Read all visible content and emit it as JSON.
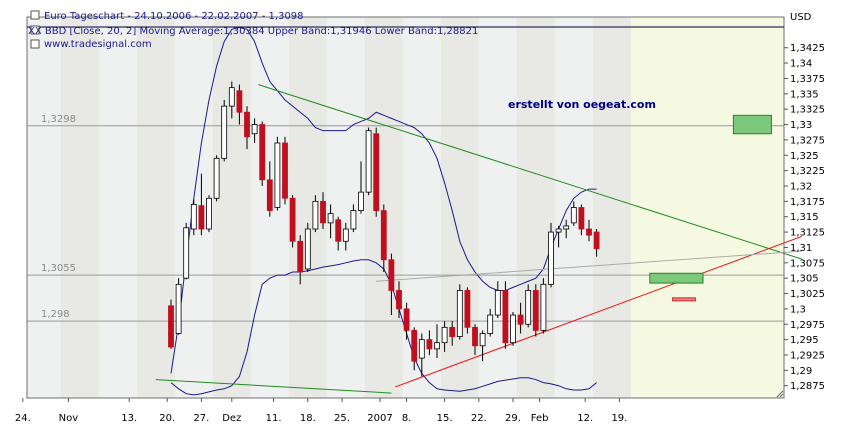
{
  "header": {
    "title": "Euro Tageschart - 24.10.2006 - 22.02.2007 - 1,3098",
    "indicator": "XX BBD [Close, 20, 2] Moving Average:1,30384 Upper Band:1,31946 Lower Band:1,28821",
    "source": "www.tradesignal.com",
    "currency": "USD"
  },
  "annotation": "erstellt von oegeat.com",
  "colors": {
    "plot_bg": "#f5f9e2",
    "band_light": "#e9e9fb",
    "band_dark": "#dcdce8",
    "candle_up": "#ffffff",
    "candle_down": "#c01020",
    "bollinger": "#1a1a8c",
    "trend_green": "#1e8c1e",
    "trend_red": "#ee1111",
    "box_green": "#7cc87c",
    "box_red": "#f08080"
  },
  "chart_data": {
    "type": "candlestick",
    "ylim": [
      1.2855,
      1.3475
    ],
    "y_ticks": [
      "1,2875",
      "1,29",
      "1,2925",
      "1,295",
      "1,2975",
      "1,3",
      "1,3025",
      "1,305",
      "1,3075",
      "1,31",
      "1,3125",
      "1,315",
      "1,3175",
      "1,32",
      "1,3225",
      "1,325",
      "1,3275",
      "1,33",
      "1,3325",
      "1,335",
      "1,3375",
      "1,34",
      "1,3425"
    ],
    "x_ticks": [
      "24.",
      "Nov",
      "13.",
      "20.",
      "27.",
      "Dez",
      "11.",
      "18.",
      "25.",
      "2007",
      "8.",
      "15.",
      "22.",
      "29.",
      "Feb",
      "12.",
      "19."
    ],
    "reference_lines": [
      {
        "label": "1,3298",
        "value": 1.3298
      },
      {
        "label": "1,3055",
        "value": 1.3055
      },
      {
        "label": "1,298",
        "value": 1.298
      }
    ],
    "candles": [
      {
        "o": 1.3005,
        "h": 1.3015,
        "l": 1.2935,
        "c": 1.2938
      },
      {
        "o": 1.296,
        "h": 1.305,
        "l": 1.2958,
        "c": 1.304
      },
      {
        "o": 1.305,
        "h": 1.314,
        "l": 1.3048,
        "c": 1.3132
      },
      {
        "o": 1.313,
        "h": 1.3178,
        "l": 1.312,
        "c": 1.317
      },
      {
        "o": 1.3168,
        "h": 1.322,
        "l": 1.312,
        "c": 1.313
      },
      {
        "o": 1.313,
        "h": 1.3185,
        "l": 1.3125,
        "c": 1.318
      },
      {
        "o": 1.318,
        "h": 1.325,
        "l": 1.3175,
        "c": 1.3245
      },
      {
        "o": 1.3245,
        "h": 1.334,
        "l": 1.324,
        "c": 1.333
      },
      {
        "o": 1.333,
        "h": 1.337,
        "l": 1.331,
        "c": 1.336
      },
      {
        "o": 1.3355,
        "h": 1.3365,
        "l": 1.33,
        "c": 1.332
      },
      {
        "o": 1.332,
        "h": 1.333,
        "l": 1.326,
        "c": 1.328
      },
      {
        "o": 1.3285,
        "h": 1.331,
        "l": 1.327,
        "c": 1.33
      },
      {
        "o": 1.33,
        "h": 1.3305,
        "l": 1.32,
        "c": 1.321
      },
      {
        "o": 1.321,
        "h": 1.324,
        "l": 1.315,
        "c": 1.316
      },
      {
        "o": 1.3165,
        "h": 1.328,
        "l": 1.316,
        "c": 1.327
      },
      {
        "o": 1.327,
        "h": 1.328,
        "l": 1.317,
        "c": 1.318
      },
      {
        "o": 1.318,
        "h": 1.3185,
        "l": 1.31,
        "c": 1.311
      },
      {
        "o": 1.311,
        "h": 1.312,
        "l": 1.304,
        "c": 1.306
      },
      {
        "o": 1.3065,
        "h": 1.314,
        "l": 1.306,
        "c": 1.313
      },
      {
        "o": 1.313,
        "h": 1.3185,
        "l": 1.3125,
        "c": 1.3175
      },
      {
        "o": 1.3175,
        "h": 1.319,
        "l": 1.313,
        "c": 1.314
      },
      {
        "o": 1.314,
        "h": 1.317,
        "l": 1.3115,
        "c": 1.3155
      },
      {
        "o": 1.3145,
        "h": 1.315,
        "l": 1.3095,
        "c": 1.311
      },
      {
        "o": 1.311,
        "h": 1.314,
        "l": 1.3095,
        "c": 1.313
      },
      {
        "o": 1.313,
        "h": 1.317,
        "l": 1.3125,
        "c": 1.316
      },
      {
        "o": 1.316,
        "h": 1.324,
        "l": 1.3155,
        "c": 1.319
      },
      {
        "o": 1.319,
        "h": 1.3295,
        "l": 1.3185,
        "c": 1.329
      },
      {
        "o": 1.3285,
        "h": 1.3295,
        "l": 1.315,
        "c": 1.316
      },
      {
        "o": 1.316,
        "h": 1.317,
        "l": 1.306,
        "c": 1.308
      },
      {
        "o": 1.308,
        "h": 1.309,
        "l": 1.299,
        "c": 1.303
      },
      {
        "o": 1.303,
        "h": 1.3045,
        "l": 1.2985,
        "c": 1.3
      },
      {
        "o": 1.3,
        "h": 1.301,
        "l": 1.295,
        "c": 1.2965
      },
      {
        "o": 1.2965,
        "h": 1.297,
        "l": 1.29,
        "c": 1.2915
      },
      {
        "o": 1.292,
        "h": 1.296,
        "l": 1.289,
        "c": 1.295
      },
      {
        "o": 1.295,
        "h": 1.2965,
        "l": 1.2925,
        "c": 1.2935
      },
      {
        "o": 1.2935,
        "h": 1.2975,
        "l": 1.292,
        "c": 1.2945
      },
      {
        "o": 1.2945,
        "h": 1.298,
        "l": 1.293,
        "c": 1.297
      },
      {
        "o": 1.297,
        "h": 1.298,
        "l": 1.294,
        "c": 1.2955
      },
      {
        "o": 1.2955,
        "h": 1.304,
        "l": 1.295,
        "c": 1.303
      },
      {
        "o": 1.303,
        "h": 1.3035,
        "l": 1.296,
        "c": 1.297
      },
      {
        "o": 1.297,
        "h": 1.2975,
        "l": 1.2925,
        "c": 1.294
      },
      {
        "o": 1.294,
        "h": 1.2965,
        "l": 1.2915,
        "c": 1.296
      },
      {
        "o": 1.296,
        "h": 1.3,
        "l": 1.2955,
        "c": 1.299
      },
      {
        "o": 1.299,
        "h": 1.3045,
        "l": 1.2985,
        "c": 1.303
      },
      {
        "o": 1.303,
        "h": 1.3045,
        "l": 1.2935,
        "c": 1.2945
      },
      {
        "o": 1.2945,
        "h": 1.2995,
        "l": 1.294,
        "c": 1.299
      },
      {
        "o": 1.299,
        "h": 1.301,
        "l": 1.296,
        "c": 1.2975
      },
      {
        "o": 1.2975,
        "h": 1.304,
        "l": 1.297,
        "c": 1.303
      },
      {
        "o": 1.303,
        "h": 1.304,
        "l": 1.2955,
        "c": 1.2965
      },
      {
        "o": 1.2965,
        "h": 1.305,
        "l": 1.296,
        "c": 1.304
      },
      {
        "o": 1.304,
        "h": 1.314,
        "l": 1.3035,
        "c": 1.3125
      },
      {
        "o": 1.3125,
        "h": 1.3135,
        "l": 1.31,
        "c": 1.313
      },
      {
        "o": 1.313,
        "h": 1.3145,
        "l": 1.3115,
        "c": 1.3135
      },
      {
        "o": 1.314,
        "h": 1.3175,
        "l": 1.3135,
        "c": 1.3165
      },
      {
        "o": 1.3165,
        "h": 1.317,
        "l": 1.312,
        "c": 1.313
      },
      {
        "o": 1.313,
        "h": 1.3145,
        "l": 1.311,
        "c": 1.312
      },
      {
        "o": 1.3125,
        "h": 1.313,
        "l": 1.3085,
        "c": 1.3098
      }
    ],
    "bollinger_upper": [
      1.2895,
      1.2975,
      1.308,
      1.318,
      1.327,
      1.334,
      1.3395,
      1.3435,
      1.3455,
      1.3458,
      1.3455,
      1.3435,
      1.34,
      1.337,
      1.3355,
      1.334,
      1.333,
      1.332,
      1.331,
      1.3295,
      1.329,
      1.329,
      1.329,
      1.329,
      1.33,
      1.3305,
      1.331,
      1.332,
      1.3315,
      1.331,
      1.3305,
      1.33,
      1.3295,
      1.3285,
      1.327,
      1.3245,
      1.3205,
      1.316,
      1.311,
      1.308,
      1.306,
      1.3045,
      1.3035,
      1.303,
      1.303,
      1.3035,
      1.304,
      1.3045,
      1.305,
      1.3065,
      1.31,
      1.313,
      1.316,
      1.318,
      1.319,
      1.3195,
      1.3195
    ],
    "bollinger_lower": [
      1.288,
      1.287,
      1.2862,
      1.286,
      1.2862,
      1.2865,
      1.2868,
      1.287,
      1.2875,
      1.289,
      1.293,
      1.299,
      1.304,
      1.305,
      1.3055,
      1.3055,
      1.306,
      1.306,
      1.3062,
      1.3065,
      1.3068,
      1.307,
      1.3072,
      1.3075,
      1.3078,
      1.308,
      1.308,
      1.3075,
      1.3065,
      1.304,
      1.3,
      1.296,
      1.292,
      1.2895,
      1.288,
      1.287,
      1.2868,
      1.2867,
      1.2866,
      1.2868,
      1.287,
      1.2874,
      1.2878,
      1.2882,
      1.2884,
      1.2886,
      1.2888,
      1.2888,
      1.2885,
      1.288,
      1.2878,
      1.2875,
      1.287,
      1.2868,
      1.2868,
      1.287,
      1.288
    ],
    "trend_lines": [
      {
        "name": "green-down-upper",
        "color": "#1e8c1e",
        "from": [
          11.5,
          1.3365
        ],
        "to": [
          83,
          1.3081
        ]
      },
      {
        "name": "green-down-lower",
        "color": "#1e8c1e",
        "from": [
          -2,
          1.2885
        ],
        "to": [
          29,
          1.2863
        ]
      },
      {
        "name": "red-up",
        "color": "#ee1111",
        "from": [
          29.5,
          1.2873
        ],
        "to": [
          83,
          1.3118
        ]
      },
      {
        "name": "gray-flat",
        "color": "#aaaaaa",
        "from": [
          27,
          1.3045
        ],
        "to": [
          83,
          1.3094
        ]
      }
    ],
    "boxes": [
      {
        "name": "green-box-upper",
        "color": "#7cc87c",
        "x": [
          74,
          79
        ],
        "y": [
          1.3285,
          1.3315
        ]
      },
      {
        "name": "green-box-lower",
        "color": "#7cc87c",
        "x": [
          63,
          70
        ],
        "y": [
          1.3042,
          1.3058
        ]
      },
      {
        "name": "red-box",
        "color": "#f08080",
        "x": [
          66,
          69
        ],
        "y": [
          1.3013,
          1.3018
        ]
      }
    ]
  }
}
